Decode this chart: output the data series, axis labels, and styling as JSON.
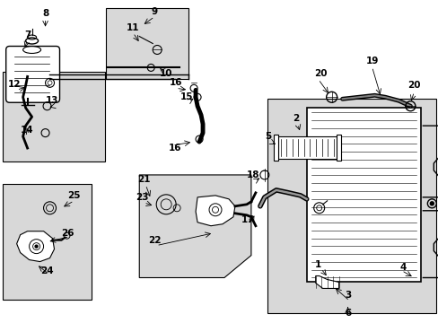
{
  "bg": "#ffffff",
  "fw": 4.89,
  "fh": 3.6,
  "dpi": 100,
  "gray": "#d8d8d8",
  "black": "#000000"
}
